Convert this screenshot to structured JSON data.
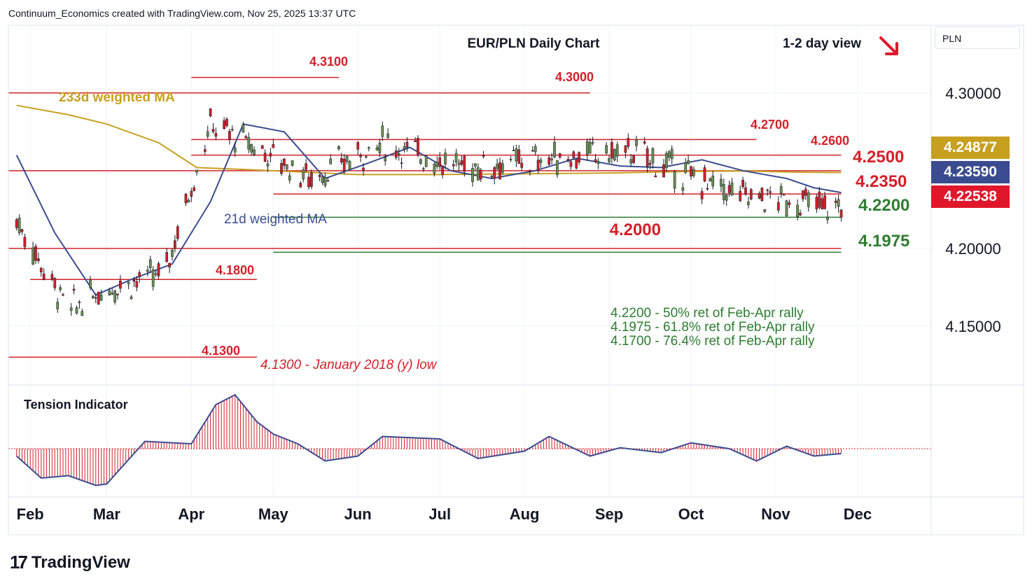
{
  "header": {
    "attribution": "Continuum_Economics created with TradingView.com, Nov 25, 2025 13:37 UTC"
  },
  "brand": {
    "logo_mark": "17",
    "logo_text": "TradingView"
  },
  "colors": {
    "up_candle": "#6b8f55",
    "down_candle": "#d4202a",
    "resistance": "#d4202a",
    "support": "#2e7d32",
    "ma21": "#3a4c8f",
    "ma233": "#c8a020",
    "tension_line": "#3a4c8f",
    "tension_fill": "#d4202a",
    "last_price": "#e0162b"
  },
  "chart_data": {
    "type": "candlestick",
    "title": "EUR/PLN Daily Chart",
    "view": "1-2 day view",
    "view_direction_icon": "arrow-down-right-icon",
    "currency_button": "PLN",
    "y_axis": {
      "ticks": [
        "4.30000",
        "4.20000",
        "4.15000"
      ],
      "range": [
        4.113,
        4.3436
      ]
    },
    "x_axis": {
      "ticks": [
        "Feb",
        "Mar",
        "Apr",
        "May",
        "Jun",
        "Jul",
        "Aug",
        "Sep",
        "Oct",
        "Nov",
        "Dec"
      ]
    },
    "price_tags": [
      {
        "label": "4.24877",
        "series": "233d weighted MA",
        "color": "#c8a020"
      },
      {
        "label": "4.23590",
        "series": "21d weighted MA",
        "color": "#3a4c8f"
      },
      {
        "label": "4.22538",
        "series": "last price",
        "color": "#e0162b"
      }
    ],
    "levels": [
      {
        "label": "4.3100",
        "value": 4.31,
        "type": "resistance",
        "from_month": "Apr",
        "to_month": "May"
      },
      {
        "label": "4.3000",
        "value": 4.3,
        "type": "resistance",
        "from_month": "Jan",
        "to_month": "Aug"
      },
      {
        "label": "4.2700",
        "value": 4.27,
        "type": "resistance",
        "from_month": "Apr",
        "to_month": "Oct"
      },
      {
        "label": "4.2600",
        "value": 4.26,
        "type": "resistance",
        "from_month": "Apr",
        "to_month": "Nov"
      },
      {
        "label": "4.2500",
        "value": 4.25,
        "type": "resistance",
        "from_month": "Jan",
        "to_month": "Nov"
      },
      {
        "label": "4.2350",
        "value": 4.235,
        "type": "resistance",
        "from_month": "May",
        "to_month": "Nov"
      },
      {
        "label": "4.2200",
        "value": 4.22,
        "type": "support",
        "from_month": "May",
        "to_month": "Nov"
      },
      {
        "label": "4.2000",
        "value": 4.2,
        "type": "resistance",
        "from_month": "Jan",
        "to_month": "Nov"
      },
      {
        "label": "4.1975",
        "value": 4.1975,
        "type": "support",
        "from_month": "May",
        "to_month": "Nov"
      },
      {
        "label": "4.1800",
        "value": 4.18,
        "type": "resistance",
        "from_month": "Feb",
        "to_month": "Apr"
      },
      {
        "label": "4.1300",
        "value": 4.13,
        "type": "resistance",
        "from_month": "Jan",
        "to_month": "Apr"
      }
    ],
    "annotations": [
      "4.2200 - 50% ret of Feb-Apr rally",
      "4.1975 - 61.8% ret of Feb-Apr rally",
      "4.1700 - 76.4% ret of Feb-Apr rally",
      "4.1300 - January 2018 (y) low"
    ],
    "series": [
      {
        "name": "233d weighted MA",
        "x": [
          "Jan 27",
          "Feb 15",
          "Mar 1",
          "Mar 20",
          "Apr 3",
          "May 1",
          "Jun 1",
          "Jul 1",
          "Aug 1",
          "Sep 1",
          "Oct 1",
          "Oct 20",
          "Nov 10",
          "Nov 25"
        ],
        "values": [
          4.292,
          4.286,
          4.28,
          4.268,
          4.252,
          4.25,
          4.2475,
          4.2475,
          4.248,
          4.2485,
          4.2495,
          4.2498,
          4.249,
          4.2488
        ]
      },
      {
        "name": "21d weighted MA",
        "x": [
          "Jan 27",
          "Feb 10",
          "Feb 25",
          "Mar 10",
          "Mar 25",
          "Apr 8",
          "Apr 20",
          "May 5",
          "May 20",
          "Jun 5",
          "Jun 20",
          "Jul 5",
          "Jul 20",
          "Aug 5",
          "Aug 20",
          "Sep 5",
          "Sep 20",
          "Oct 5",
          "Oct 20",
          "Nov 5",
          "Nov 15",
          "Nov 25"
        ],
        "values": [
          4.26,
          4.21,
          4.17,
          4.18,
          4.19,
          4.23,
          4.28,
          4.275,
          4.245,
          4.255,
          4.265,
          4.25,
          4.245,
          4.25,
          4.258,
          4.253,
          4.252,
          4.257,
          4.25,
          4.245,
          4.239,
          4.2359
        ]
      }
    ],
    "ohlc_summary": [
      {
        "period": "late Jan",
        "open": 4.245,
        "high": 4.262,
        "low": 4.2,
        "close": 4.218
      },
      {
        "period": "Feb",
        "open": 4.218,
        "high": 4.23,
        "low": 4.142,
        "close": 4.16
      },
      {
        "period": "early Mar",
        "open": 4.16,
        "high": 4.205,
        "low": 4.127,
        "close": 4.175
      },
      {
        "period": "late Mar",
        "open": 4.175,
        "high": 4.207,
        "low": 4.163,
        "close": 4.183
      },
      {
        "period": "early Apr",
        "open": 4.183,
        "high": 4.31,
        "low": 4.178,
        "close": 4.28
      },
      {
        "period": "late Apr",
        "open": 4.28,
        "high": 4.296,
        "low": 4.255,
        "close": 4.265
      },
      {
        "period": "mid May",
        "open": 4.265,
        "high": 4.272,
        "low": 4.23,
        "close": 4.245
      },
      {
        "period": "Jun",
        "open": 4.245,
        "high": 4.283,
        "low": 4.238,
        "close": 4.268
      },
      {
        "period": "Jul",
        "open": 4.268,
        "high": 4.27,
        "low": 4.238,
        "close": 4.252
      },
      {
        "period": "Aug",
        "open": 4.252,
        "high": 4.281,
        "low": 4.243,
        "close": 4.258
      },
      {
        "period": "Sep",
        "open": 4.258,
        "high": 4.272,
        "low": 4.246,
        "close": 4.262
      },
      {
        "period": "Oct",
        "open": 4.262,
        "high": 4.274,
        "low": 4.231,
        "close": 4.236
      },
      {
        "period": "Nov",
        "open": 4.236,
        "high": 4.262,
        "low": 4.22,
        "close": 4.2254
      }
    ],
    "tension_indicator": {
      "title": "Tension Indicator",
      "x": [
        "Jan 27",
        "Feb 5",
        "Feb 15",
        "Feb 25",
        "Mar 1",
        "Mar 15",
        "Apr 1",
        "Apr 10",
        "Apr 17",
        "Apr 25",
        "May 1",
        "May 10",
        "May 20",
        "Jun 1",
        "Jun 10",
        "Jul 1",
        "Jul 15",
        "Aug 1",
        "Aug 10",
        "Aug 25",
        "Sep 5",
        "Sep 20",
        "Oct 1",
        "Oct 15",
        "Oct 25",
        "Nov 5",
        "Nov 15",
        "Nov 25"
      ],
      "values": [
        -0.15,
        -0.6,
        -0.55,
        -0.75,
        -0.72,
        0.15,
        0.1,
        0.9,
        1.1,
        0.55,
        0.3,
        0.1,
        -0.25,
        -0.15,
        0.25,
        0.2,
        -0.2,
        -0.05,
        0.25,
        -0.15,
        0.02,
        -0.08,
        0.12,
        0.0,
        -0.25,
        0.05,
        -0.15,
        -0.1
      ]
    }
  }
}
